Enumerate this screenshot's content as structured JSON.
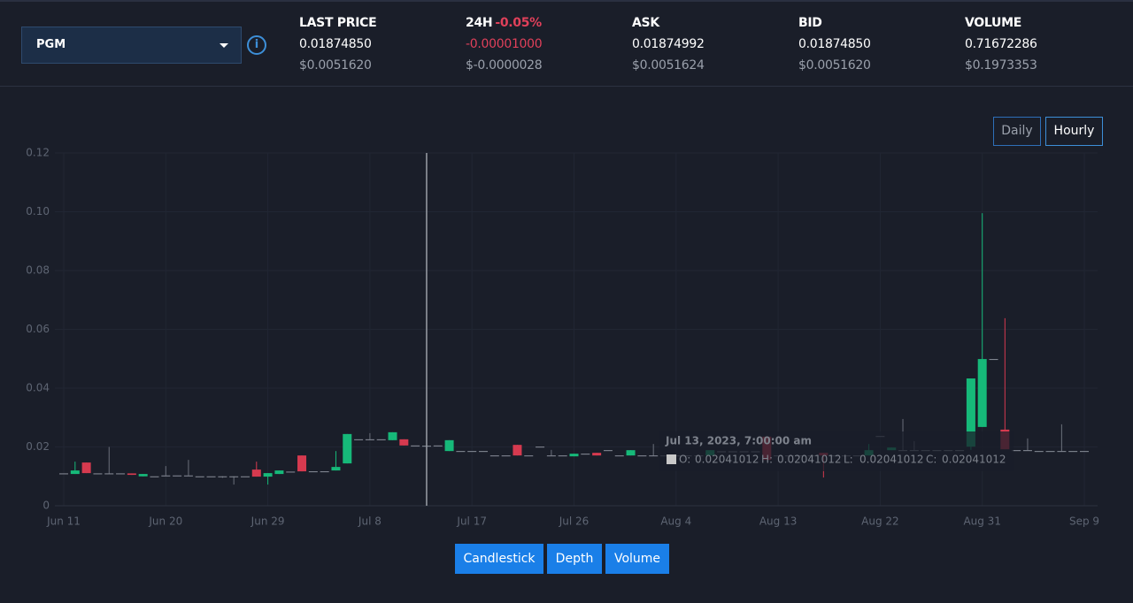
{
  "header": {
    "pair": "PGM",
    "stats": [
      {
        "label": "LAST PRICE",
        "value": "0.01874850",
        "usd": "$0.0051620"
      },
      {
        "label": "24H",
        "change": "-0.05%",
        "value": "-0.00001000",
        "usd": "$-0.0000028"
      },
      {
        "label": "ASK",
        "value": "0.01874992",
        "usd": "$0.0051624"
      },
      {
        "label": "BID",
        "value": "0.01874850",
        "usd": "$0.0051620"
      },
      {
        "label": "VOLUME",
        "value": "0.71672286",
        "usd": "$0.1973353"
      }
    ]
  },
  "interval_buttons": [
    "Daily",
    "Hourly"
  ],
  "view_buttons": [
    "Candlestick",
    "Depth",
    "Volume"
  ],
  "tooltip": {
    "date": "Jul 13, 2023, 7:00:00 am",
    "labels": [
      "O:",
      "H:",
      "L:",
      "C:"
    ]
  },
  "chart_data": {
    "type": "candlestick",
    "up_color": "#16b979",
    "down_color": "#d63a4f",
    "flat_color": "#8a8f9a",
    "grid": true,
    "x": [
      "Jun 11",
      "Jun 12",
      "Jun 13",
      "Jun 14",
      "Jun 15",
      "Jun 16",
      "Jun 17",
      "Jun 18",
      "Jun 19",
      "Jun 20",
      "Jun 21",
      "Jun 22",
      "Jun 23",
      "Jun 24",
      "Jun 25",
      "Jun 26",
      "Jun 27",
      "Jun 28",
      "Jun 29",
      "Jun 30",
      "Jul 1",
      "Jul 2",
      "Jul 3",
      "Jul 4",
      "Jul 5",
      "Jul 6",
      "Jul 7",
      "Jul 8",
      "Jul 9",
      "Jul 10",
      "Jul 11",
      "Jul 12",
      "Jul 13",
      "Jul 14",
      "Jul 15",
      "Jul 16",
      "Jul 17",
      "Jul 18",
      "Jul 19",
      "Jul 20",
      "Jul 21",
      "Jul 22",
      "Jul 23",
      "Jul 24",
      "Jul 25",
      "Jul 26",
      "Jul 27",
      "Jul 28",
      "Jul 29",
      "Jul 30",
      "Jul 31",
      "Aug 1",
      "Aug 2",
      "Aug 3",
      "Aug 4",
      "Aug 5",
      "Aug 6",
      "Aug 7",
      "Aug 8",
      "Aug 9",
      "Aug 10",
      "Aug 11",
      "Aug 12",
      "Aug 13",
      "Aug 14",
      "Aug 15",
      "Aug 16",
      "Aug 17",
      "Aug 18",
      "Aug 19",
      "Aug 20",
      "Aug 21",
      "Aug 22",
      "Aug 23",
      "Aug 24",
      "Aug 25",
      "Aug 26",
      "Aug 27",
      "Aug 28",
      "Aug 29",
      "Aug 30",
      "Aug 31",
      "Sep 1",
      "Sep 2",
      "Sep 3",
      "Sep 4",
      "Sep 5",
      "Sep 6",
      "Sep 7",
      "Sep 8",
      "Sep 9"
    ],
    "open": [
      0.011,
      0.0108,
      0.0147,
      0.011,
      0.011,
      0.011,
      0.011,
      0.01,
      0.01,
      0.0103,
      0.0103,
      0.0103,
      0.01,
      0.01,
      0.01,
      0.01,
      0.01,
      0.0123,
      0.0099,
      0.0108,
      0.0116,
      0.0171,
      0.0117,
      0.0117,
      0.012,
      0.0144,
      0.0226,
      0.0226,
      0.0226,
      0.0223,
      0.0226,
      0.0205,
      0.02041012,
      0.0205,
      0.0186,
      0.0186,
      0.0186,
      0.0186,
      0.0171,
      0.0171,
      0.0207,
      0.0171,
      0.0201,
      0.0171,
      0.0171,
      0.0168,
      0.0177,
      0.018,
      0.0189,
      0.0171,
      0.0171,
      0.0171,
      0.0171,
      0.0171,
      0.0171,
      0.0171,
      0.0171,
      0.0171,
      0.0185,
      0.0185,
      0.0185,
      0.0185,
      0.0235,
      0.0171,
      0.0171,
      0.0171,
      0.0171,
      0.018,
      0.0171,
      0.0171,
      0.0171,
      0.0171,
      0.0237,
      0.0189,
      0.0189,
      0.0189,
      0.0189,
      0.0189,
      0.0189,
      0.0189,
      0.0201,
      0.0268,
      0.0499,
      0.0259,
      0.0189,
      0.0189,
      0.0186,
      0.0186,
      0.0186,
      0.0186,
      0.0186
    ],
    "high": [
      0.011,
      0.015,
      0.0147,
      0.011,
      0.02,
      0.011,
      0.011,
      0.0108,
      0.01,
      0.0135,
      0.0103,
      0.0156,
      0.01,
      0.01,
      0.01,
      0.01,
      0.01,
      0.015,
      0.0111,
      0.012,
      0.0116,
      0.0171,
      0.0117,
      0.0117,
      0.0186,
      0.0244,
      0.0226,
      0.0247,
      0.0226,
      0.025,
      0.0226,
      0.0205,
      0.02041012,
      0.0205,
      0.0223,
      0.0186,
      0.0186,
      0.0186,
      0.0171,
      0.0171,
      0.0207,
      0.0171,
      0.0201,
      0.019,
      0.0171,
      0.0177,
      0.0177,
      0.018,
      0.0189,
      0.0171,
      0.0189,
      0.0171,
      0.021,
      0.0171,
      0.0171,
      0.0171,
      0.0171,
      0.0189,
      0.0185,
      0.0185,
      0.0185,
      0.0185,
      0.0235,
      0.0171,
      0.0171,
      0.0171,
      0.0171,
      0.018,
      0.0171,
      0.0171,
      0.0171,
      0.021,
      0.0237,
      0.0198,
      0.0295,
      0.022,
      0.0189,
      0.0189,
      0.0189,
      0.0189,
      0.0433,
      0.0995,
      0.0499,
      0.0638,
      0.0189,
      0.0229,
      0.0186,
      0.0186,
      0.0277,
      0.0186,
      0.0186
    ],
    "low": [
      0.011,
      0.0108,
      0.0111,
      0.011,
      0.011,
      0.011,
      0.0105,
      0.01,
      0.01,
      0.0103,
      0.0103,
      0.0103,
      0.01,
      0.01,
      0.0095,
      0.0072,
      0.01,
      0.0099,
      0.0072,
      0.0108,
      0.0116,
      0.0117,
      0.0117,
      0.0117,
      0.012,
      0.0144,
      0.0226,
      0.0226,
      0.0226,
      0.0223,
      0.0205,
      0.0205,
      0.02041012,
      0.0205,
      0.0186,
      0.0186,
      0.0186,
      0.0186,
      0.0171,
      0.0171,
      0.0171,
      0.0171,
      0.0201,
      0.0171,
      0.0171,
      0.0168,
      0.0177,
      0.0171,
      0.0189,
      0.0171,
      0.0171,
      0.0171,
      0.0171,
      0.0171,
      0.0171,
      0.0171,
      0.0171,
      0.0171,
      0.0185,
      0.0185,
      0.0185,
      0.0185,
      0.0156,
      0.0171,
      0.0171,
      0.0171,
      0.0171,
      0.0096,
      0.0171,
      0.0171,
      0.0171,
      0.0171,
      0.0237,
      0.0189,
      0.0189,
      0.0189,
      0.0189,
      0.0189,
      0.0189,
      0.0189,
      0.019,
      0.0268,
      0.0499,
      0.0192,
      0.0189,
      0.0189,
      0.0186,
      0.0186,
      0.0186,
      0.0186,
      0.0186
    ],
    "close": [
      0.011,
      0.012,
      0.0111,
      0.011,
      0.011,
      0.011,
      0.0105,
      0.0108,
      0.01,
      0.0103,
      0.0103,
      0.0103,
      0.01,
      0.01,
      0.01,
      0.01,
      0.01,
      0.0099,
      0.0111,
      0.012,
      0.0116,
      0.0117,
      0.0117,
      0.0117,
      0.0132,
      0.0244,
      0.0226,
      0.0226,
      0.0226,
      0.025,
      0.0205,
      0.0205,
      0.02041012,
      0.0205,
      0.0223,
      0.0186,
      0.0186,
      0.0186,
      0.0171,
      0.0171,
      0.0171,
      0.0171,
      0.0201,
      0.0171,
      0.0171,
      0.0177,
      0.0177,
      0.0171,
      0.0189,
      0.0171,
      0.0189,
      0.0171,
      0.0171,
      0.0171,
      0.0171,
      0.0171,
      0.0171,
      0.0189,
      0.0185,
      0.0185,
      0.0185,
      0.0185,
      0.0156,
      0.0171,
      0.0171,
      0.0171,
      0.0171,
      0.0171,
      0.0171,
      0.0171,
      0.0171,
      0.0189,
      0.0237,
      0.0198,
      0.0189,
      0.0189,
      0.0189,
      0.0189,
      0.0189,
      0.0189,
      0.0433,
      0.0499,
      0.0499,
      0.0192,
      0.0189,
      0.0189,
      0.0186,
      0.0186,
      0.0186,
      0.0186,
      0.0186
    ],
    "ylim": [
      0,
      0.12
    ],
    "yticks": [
      0,
      0.02,
      0.04,
      0.06,
      0.08,
      {
        "value": 0.1,
        "label": "0.10"
      },
      0.12
    ],
    "xticks": [
      "Jun 11",
      "Jun 20",
      "Jun 29",
      "Jul 8",
      "Jul 17",
      "Jul 26",
      "Aug 4",
      "Aug 13",
      "Aug 22",
      "Aug 31",
      "Sep 9"
    ]
  }
}
